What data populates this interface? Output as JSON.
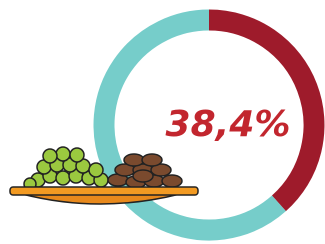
{
  "chart_data": {
    "type": "donut",
    "values": [
      38.4,
      61.6
    ],
    "value_labels": [
      "38,4%",
      null
    ],
    "colors": [
      "#9e1b2b",
      "#76cdca"
    ],
    "label_color": "#c2262e"
  }
}
